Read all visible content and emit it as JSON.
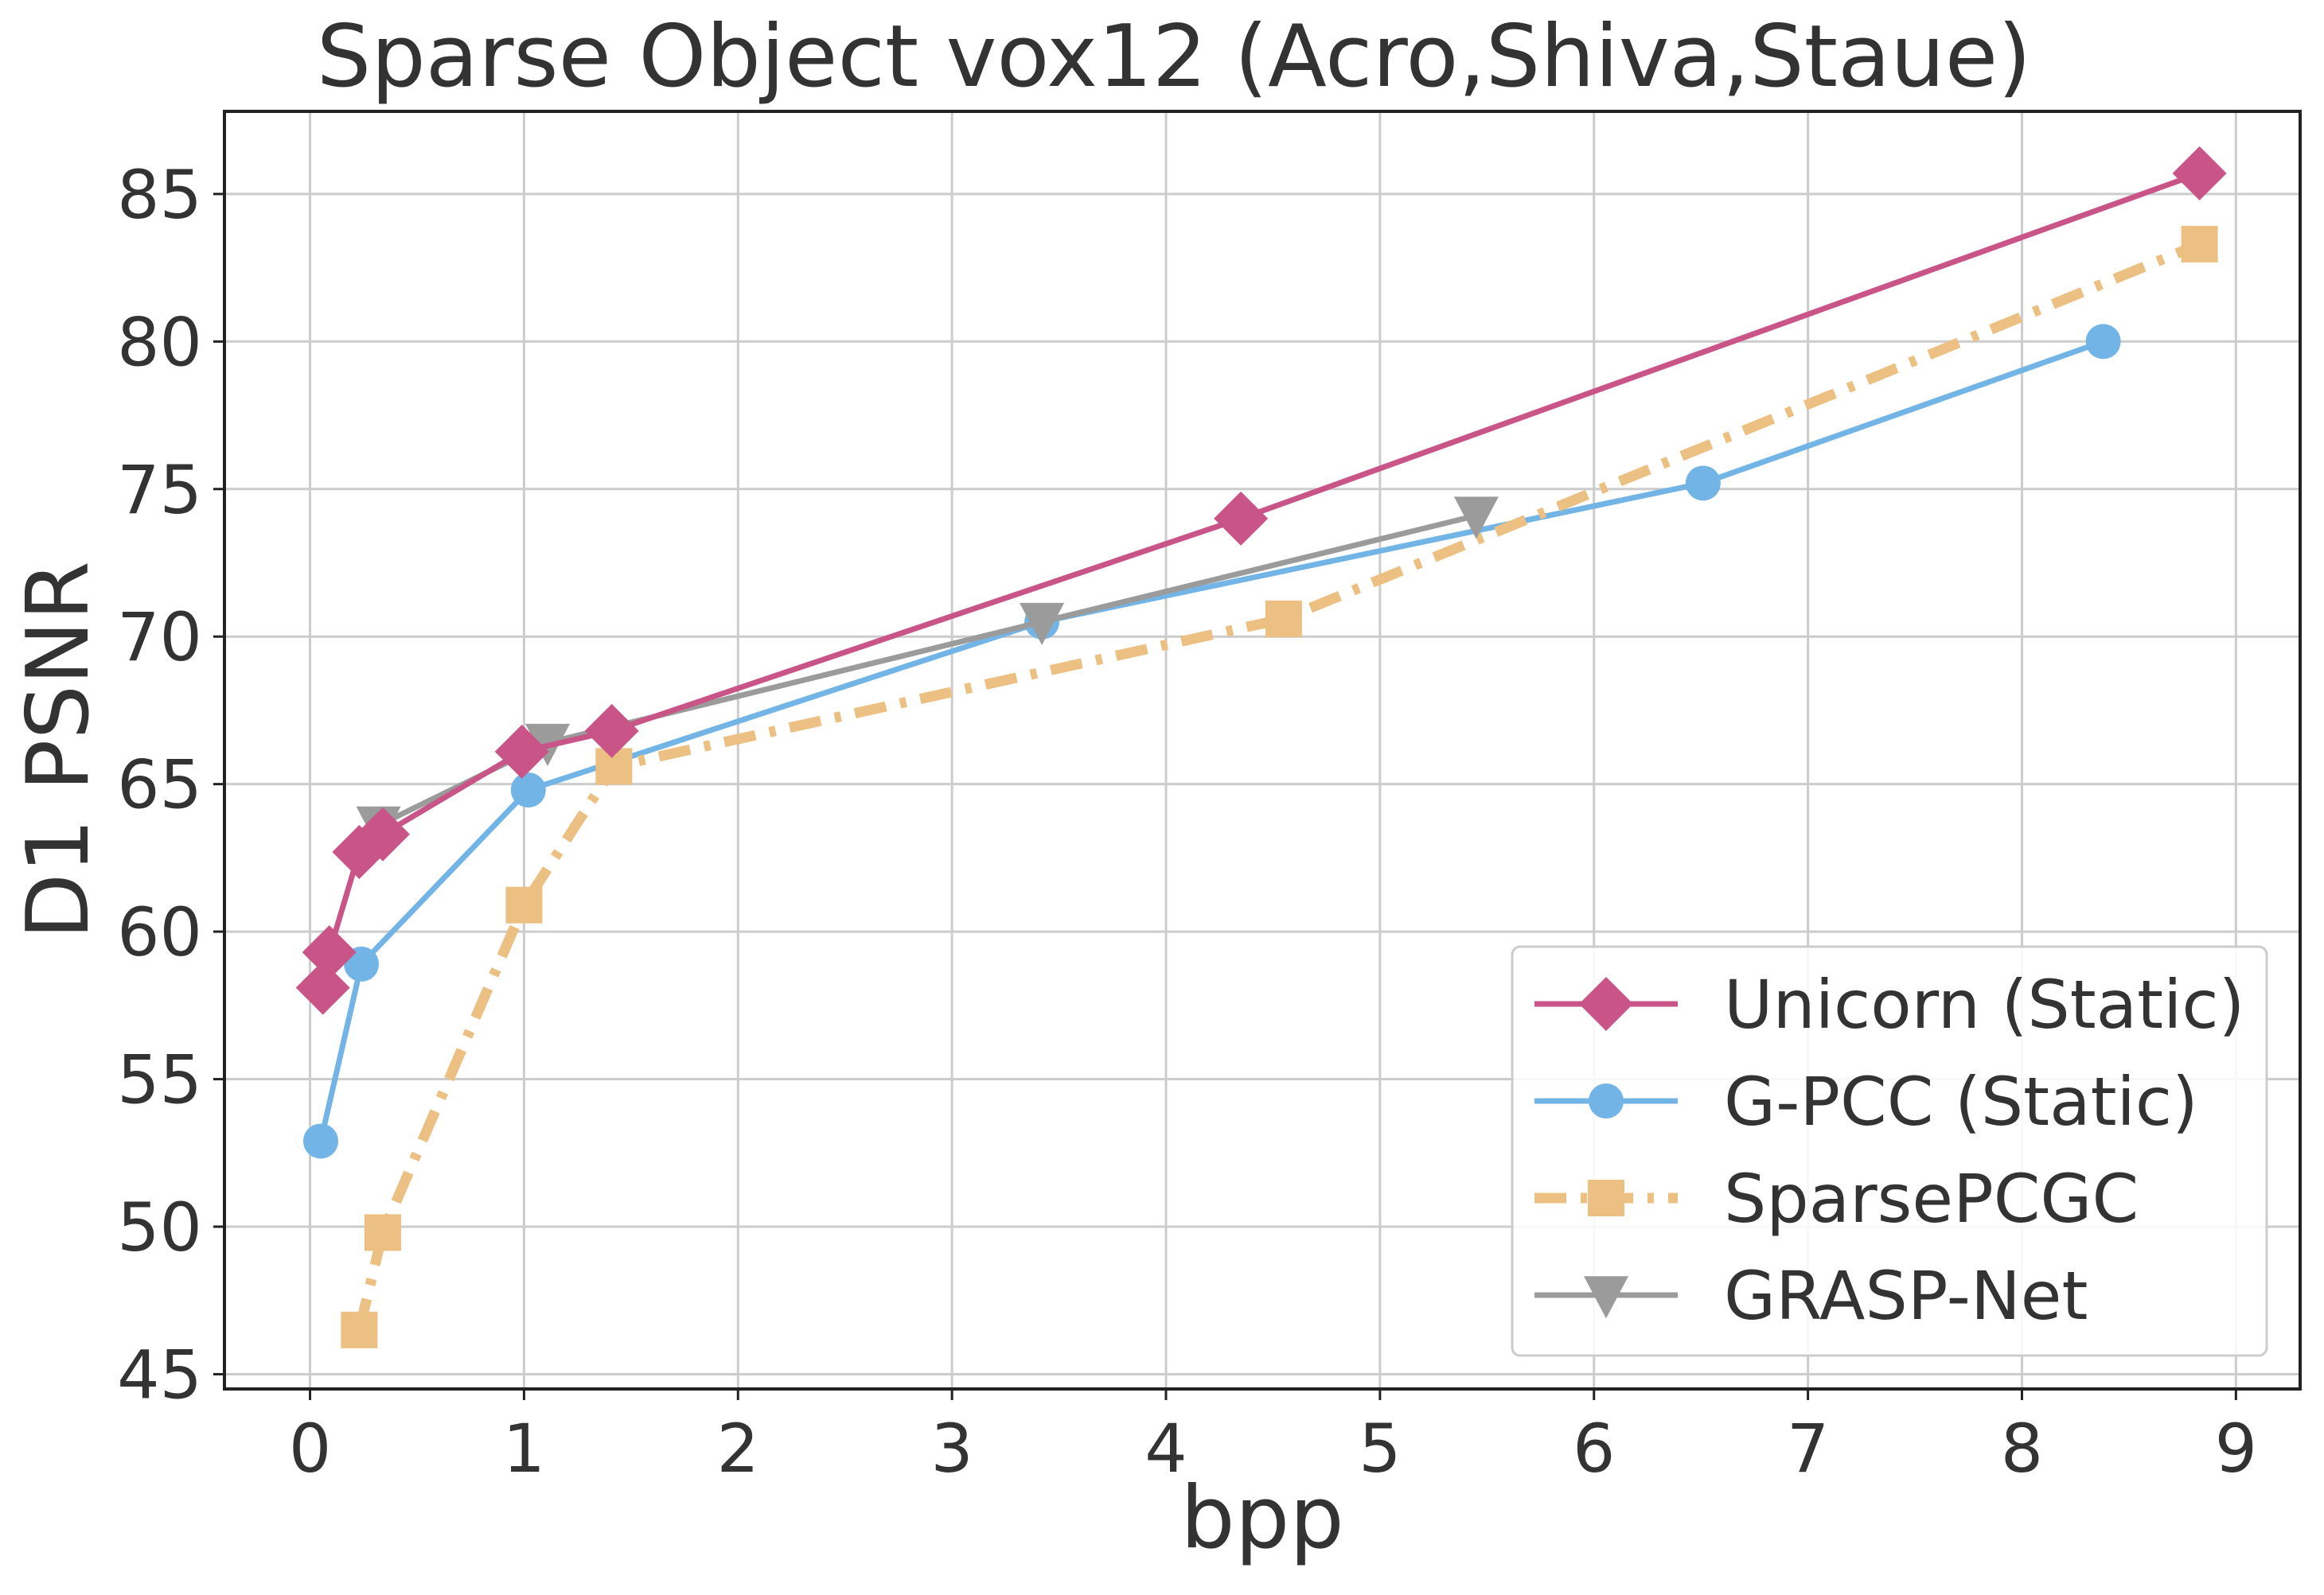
{
  "chart_data": {
    "type": "line",
    "title": "Sparse Object vox12 (Acro,Shiva,Staue)",
    "xlabel": "bpp",
    "ylabel": "D1 PSNR",
    "xlim": [
      -0.4,
      9.3
    ],
    "ylim": [
      44.5,
      87.8
    ],
    "xticks": [
      0,
      1,
      2,
      3,
      4,
      5,
      6,
      7,
      8,
      9
    ],
    "yticks": [
      45,
      50,
      55,
      60,
      65,
      70,
      75,
      80,
      85
    ],
    "grid": true,
    "legend_position": "lower right",
    "series": [
      {
        "name": "Unicorn (Static)",
        "color": "#c95588",
        "marker": "diamond",
        "linestyle": "solid",
        "points": [
          [
            0.06,
            58.1
          ],
          [
            0.09,
            59.3
          ],
          [
            0.23,
            62.7
          ],
          [
            0.34,
            63.3
          ],
          [
            0.99,
            66.1
          ],
          [
            1.41,
            66.8
          ],
          [
            4.35,
            74.0
          ],
          [
            8.83,
            85.7
          ]
        ]
      },
      {
        "name": "G-PCC (Static)",
        "color": "#72b4e6",
        "marker": "circle",
        "linestyle": "solid",
        "points": [
          [
            0.05,
            52.9
          ],
          [
            0.24,
            58.9
          ],
          [
            1.02,
            64.8
          ],
          [
            3.42,
            70.5
          ],
          [
            6.51,
            75.2
          ],
          [
            8.38,
            80.0
          ]
        ]
      },
      {
        "name": "SparsePCGC",
        "color": "#ecc082",
        "marker": "square",
        "linestyle": "dashdot",
        "points": [
          [
            0.23,
            46.5
          ],
          [
            0.34,
            49.8
          ],
          [
            1.0,
            60.9
          ],
          [
            1.42,
            65.6
          ],
          [
            4.55,
            70.6
          ],
          [
            8.83,
            83.3
          ]
        ]
      },
      {
        "name": "GRASP-Net",
        "color": "#9b9b9b",
        "marker": "triangle-down",
        "linestyle": "solid",
        "points": [
          [
            0.32,
            63.6
          ],
          [
            1.11,
            66.4
          ],
          [
            3.42,
            70.5
          ],
          [
            5.45,
            74.1
          ]
        ]
      }
    ]
  }
}
